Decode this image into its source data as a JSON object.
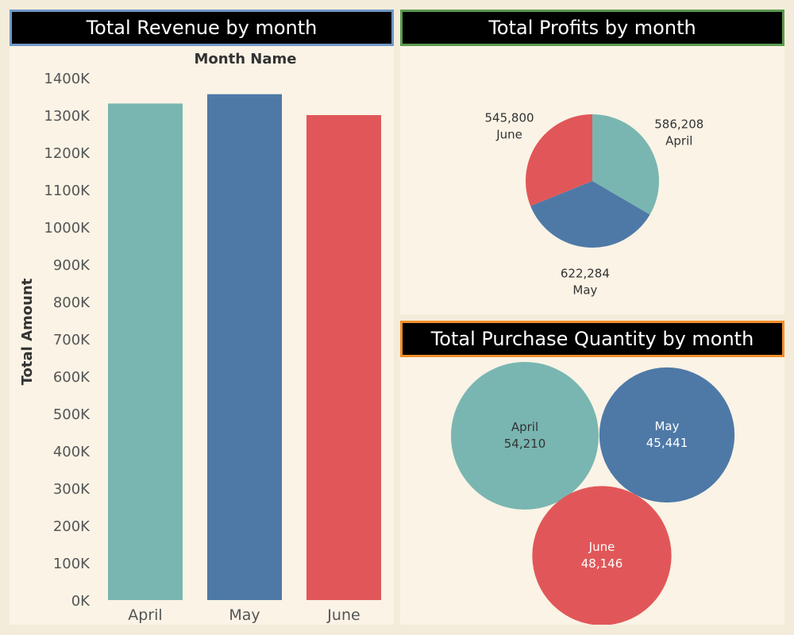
{
  "colors": {
    "april": "#79b6b1",
    "may": "#4e79a7",
    "june": "#e15759",
    "revenue_border": "#6f97c6",
    "profit_border": "#5b9a4e",
    "quantity_border": "#f28e2b"
  },
  "revenue": {
    "title": "Total Revenue by month",
    "chart_data": {
      "type": "bar",
      "title": "Total Revenue by month",
      "xlabel": "Month Name",
      "ylabel": "Total Amount",
      "categories": [
        "April",
        "May",
        "June"
      ],
      "values": [
        1331000,
        1356000,
        1300000
      ],
      "ylim": [
        0,
        1400000
      ],
      "yticks": [
        "0K",
        "100K",
        "200K",
        "300K",
        "400K",
        "500K",
        "600K",
        "700K",
        "800K",
        "900K",
        "1000K",
        "1100K",
        "1200K",
        "1300K",
        "1400K"
      ],
      "grid": false
    }
  },
  "profits": {
    "title": "Total Profits by month",
    "chart_data": {
      "type": "pie",
      "title": "Total Profits by month",
      "categories": [
        "April",
        "May",
        "June"
      ],
      "values": [
        586208,
        622284,
        545800
      ],
      "value_labels": [
        "586,208",
        "622,284",
        "545,800"
      ]
    }
  },
  "quantity": {
    "title": "Total Purchase Quantity by month",
    "chart_data": {
      "type": "bubble",
      "title": "Total Purchase Quantity by month",
      "categories": [
        "April",
        "May",
        "June"
      ],
      "values": [
        54210,
        45441,
        48146
      ],
      "value_labels": [
        "54,210",
        "45,441",
        "48,146"
      ]
    }
  }
}
